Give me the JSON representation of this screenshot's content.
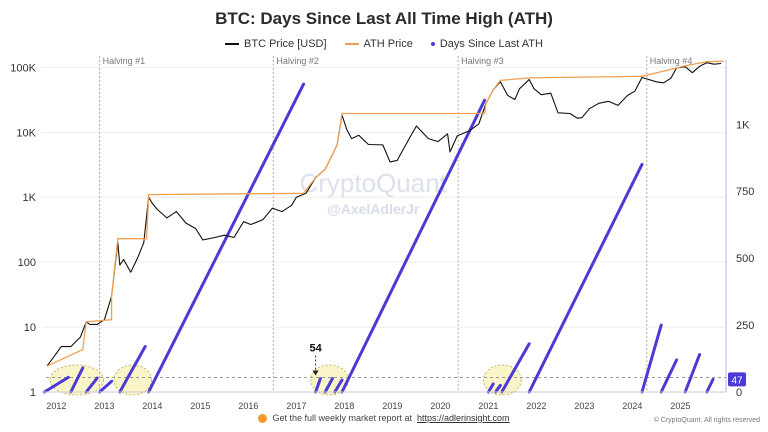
{
  "title": "BTC: Days Since Last All Time High (ATH)",
  "legend": {
    "price": "BTC Price [USD]",
    "ath": "ATH Price",
    "days": "Days Since Last ATH"
  },
  "watermark": {
    "brand": "CryptoQuant",
    "handle": "@AxelAdlerJr"
  },
  "footer": {
    "text": "Get the full weekly market report at",
    "link": "https://adlerinsight.com",
    "copyright": "© CryptoQuant. All rights reserved"
  },
  "colors": {
    "price": "#111111",
    "ath": "#f0a050",
    "days": "#4b3ad6",
    "halving": "#d9a0a0",
    "highlight": "#f6ed9a",
    "badge": "#4b3ad6"
  },
  "chart_data": {
    "type": "line",
    "x_range": [
      2011.7,
      2025.95
    ],
    "x_ticks": [
      "2012",
      "2013",
      "2014",
      "2015",
      "2016",
      "2017",
      "2018",
      "2019",
      "2020",
      "2021",
      "2022",
      "2023",
      "2024",
      "2025"
    ],
    "y_left": {
      "scale": "log",
      "range": [
        1,
        130000
      ],
      "ticks": [
        1,
        10,
        100,
        1000,
        10000,
        100000
      ],
      "tick_labels": [
        "1",
        "10",
        "100",
        "1K",
        "10K",
        "100K"
      ]
    },
    "y_right": {
      "range": [
        0,
        1240
      ],
      "ticks": [
        0,
        250,
        500,
        750,
        1000
      ],
      "tick_labels": [
        "0",
        "250",
        "500",
        "750",
        "1K"
      ]
    },
    "halvings": [
      {
        "label": "Halving #1",
        "x": 2012.9
      },
      {
        "label": "Halving #2",
        "x": 2016.52
      },
      {
        "label": "Halving #3",
        "x": 2020.37
      },
      {
        "label": "Halving #4",
        "x": 2024.3
      }
    ],
    "annotation": {
      "text": "54",
      "x": 2017.4,
      "y": 54
    },
    "current_days": 47,
    "dashed_level": 54,
    "series": [
      {
        "name": "BTC Price [USD]",
        "points": [
          [
            2011.8,
            2.5
          ],
          [
            2011.95,
            3.5
          ],
          [
            2012.1,
            5
          ],
          [
            2012.3,
            5
          ],
          [
            2012.5,
            7
          ],
          [
            2012.62,
            12
          ],
          [
            2012.7,
            11
          ],
          [
            2012.85,
            11
          ],
          [
            2013.0,
            13
          ],
          [
            2013.15,
            30
          ],
          [
            2013.28,
            200
          ],
          [
            2013.32,
            90
          ],
          [
            2013.4,
            110
          ],
          [
            2013.55,
            70
          ],
          [
            2013.7,
            120
          ],
          [
            2013.82,
            200
          ],
          [
            2013.92,
            1000
          ],
          [
            2014.0,
            800
          ],
          [
            2014.1,
            650
          ],
          [
            2014.3,
            480
          ],
          [
            2014.5,
            600
          ],
          [
            2014.7,
            400
          ],
          [
            2014.9,
            330
          ],
          [
            2015.05,
            220
          ],
          [
            2015.3,
            240
          ],
          [
            2015.5,
            260
          ],
          [
            2015.7,
            240
          ],
          [
            2015.9,
            420
          ],
          [
            2016.05,
            380
          ],
          [
            2016.3,
            450
          ],
          [
            2016.5,
            680
          ],
          [
            2016.7,
            600
          ],
          [
            2016.9,
            750
          ],
          [
            2017.0,
            1000
          ],
          [
            2017.2,
            1150
          ],
          [
            2017.4,
            2000
          ],
          [
            2017.6,
            2700
          ],
          [
            2017.75,
            4500
          ],
          [
            2017.85,
            6500
          ],
          [
            2017.95,
            18500
          ],
          [
            2018.05,
            11000
          ],
          [
            2018.15,
            8000
          ],
          [
            2018.3,
            9000
          ],
          [
            2018.5,
            6500
          ],
          [
            2018.8,
            6400
          ],
          [
            2018.95,
            3500
          ],
          [
            2019.1,
            3700
          ],
          [
            2019.35,
            8000
          ],
          [
            2019.5,
            12500
          ],
          [
            2019.75,
            8000
          ],
          [
            2019.95,
            7200
          ],
          [
            2020.15,
            9500
          ],
          [
            2020.2,
            5000
          ],
          [
            2020.35,
            8800
          ],
          [
            2020.6,
            10500
          ],
          [
            2020.8,
            13500
          ],
          [
            2020.95,
            28000
          ],
          [
            2021.1,
            45000
          ],
          [
            2021.25,
            60000
          ],
          [
            2021.4,
            37000
          ],
          [
            2021.55,
            32000
          ],
          [
            2021.65,
            47000
          ],
          [
            2021.85,
            65000
          ],
          [
            2021.95,
            47000
          ],
          [
            2022.1,
            38000
          ],
          [
            2022.3,
            40000
          ],
          [
            2022.45,
            20000
          ],
          [
            2022.7,
            19500
          ],
          [
            2022.85,
            16500
          ],
          [
            2022.95,
            16800
          ],
          [
            2023.1,
            23000
          ],
          [
            2023.3,
            28000
          ],
          [
            2023.5,
            30000
          ],
          [
            2023.7,
            26000
          ],
          [
            2023.9,
            37000
          ],
          [
            2024.05,
            43000
          ],
          [
            2024.2,
            70000
          ],
          [
            2024.5,
            60000
          ],
          [
            2024.65,
            58000
          ],
          [
            2024.8,
            68000
          ],
          [
            2024.92,
            98000
          ],
          [
            2025.1,
            102000
          ],
          [
            2025.25,
            83000
          ],
          [
            2025.4,
            104000
          ],
          [
            2025.55,
            118000
          ],
          [
            2025.7,
            112000
          ],
          [
            2025.85,
            115000
          ]
        ]
      },
      {
        "name": "ATH Price",
        "points": [
          [
            2011.8,
            2.5
          ],
          [
            2012.55,
            4.5
          ],
          [
            2012.62,
            12
          ],
          [
            2013.15,
            13
          ],
          [
            2013.15,
            30
          ],
          [
            2013.28,
            230
          ],
          [
            2013.88,
            230
          ],
          [
            2013.92,
            1100
          ],
          [
            2017.15,
            1150
          ],
          [
            2017.4,
            2000
          ],
          [
            2017.6,
            2700
          ],
          [
            2017.75,
            4500
          ],
          [
            2017.85,
            6500
          ],
          [
            2017.95,
            19500
          ],
          [
            2020.92,
            19500
          ],
          [
            2020.95,
            28000
          ],
          [
            2021.1,
            45000
          ],
          [
            2021.25,
            63000
          ],
          [
            2021.85,
            69000
          ],
          [
            2024.2,
            73000
          ],
          [
            2024.92,
            98000
          ],
          [
            2025.1,
            106000
          ],
          [
            2025.55,
            123000
          ],
          [
            2025.9,
            124000
          ]
        ]
      },
      {
        "name": "Days Since Last ATH",
        "segments": [
          [
            [
              2011.75,
              0
            ],
            [
              2012.25,
              55
            ]
          ],
          [
            [
              2012.3,
              0
            ],
            [
              2012.55,
              90
            ]
          ],
          [
            [
              2012.62,
              0
            ],
            [
              2012.85,
              52
            ]
          ],
          [
            [
              2012.9,
              0
            ],
            [
              2013.15,
              40
            ]
          ],
          [
            [
              2013.32,
              0
            ],
            [
              2013.85,
              170
            ]
          ],
          [
            [
              2013.92,
              0
            ],
            [
              2017.15,
              1150
            ]
          ],
          [
            [
              2017.4,
              0
            ],
            [
              2017.5,
              50
            ]
          ],
          [
            [
              2017.6,
              0
            ],
            [
              2017.75,
              50
            ]
          ],
          [
            [
              2017.8,
              0
            ],
            [
              2017.95,
              45
            ]
          ],
          [
            [
              2017.95,
              0
            ],
            [
              2020.92,
              1090
            ]
          ],
          [
            [
              2021.0,
              0
            ],
            [
              2021.1,
              30
            ]
          ],
          [
            [
              2021.15,
              0
            ],
            [
              2021.25,
              25
            ]
          ],
          [
            [
              2021.28,
              0
            ],
            [
              2021.85,
              180
            ]
          ],
          [
            [
              2021.85,
              0
            ],
            [
              2024.2,
              850
            ]
          ],
          [
            [
              2024.2,
              0
            ],
            [
              2024.6,
              250
            ]
          ],
          [
            [
              2024.6,
              0
            ],
            [
              2024.92,
              120
            ]
          ],
          [
            [
              2025.1,
              0
            ],
            [
              2025.4,
              140
            ]
          ],
          [
            [
              2025.55,
              0
            ],
            [
              2025.68,
              47
            ]
          ]
        ]
      }
    ]
  }
}
